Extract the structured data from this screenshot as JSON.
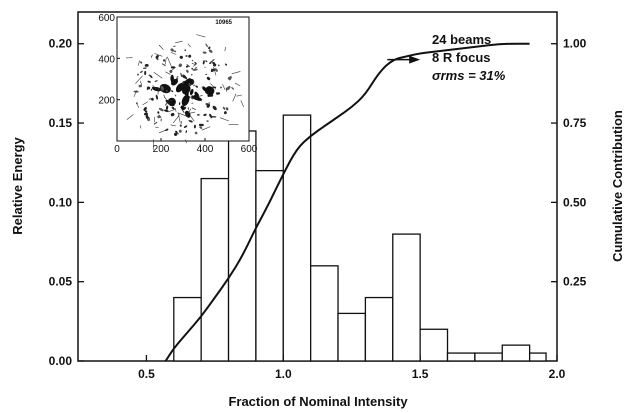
{
  "chart_data": [
    {
      "type": "bar",
      "xlabel": "Fraction of Nominal Intensity",
      "ylabel": "Relative Energy",
      "y2label": "Cumulative Contribution",
      "xlim": [
        0.25,
        2.0
      ],
      "ylim": [
        0.0,
        0.22
      ],
      "y2lim": [
        0.0,
        1.1
      ],
      "x_ticks": [
        "0.5",
        "1.0",
        "1.5",
        "2.0"
      ],
      "x_tick_values": [
        0.5,
        1.0,
        1.5,
        2.0
      ],
      "y_ticks": [
        "0.00",
        "0.05",
        "0.10",
        "0.15",
        "0.20"
      ],
      "y_tick_values": [
        0.0,
        0.05,
        0.1,
        0.15,
        0.2
      ],
      "y2_ticks": [
        "0.25",
        "0.50",
        "0.75",
        "1.00"
      ],
      "y2_tick_values": [
        0.25,
        0.5,
        0.75,
        1.0
      ],
      "bin_width": 0.1,
      "bin_centers": [
        0.65,
        0.75,
        0.85,
        0.95,
        1.05,
        1.15,
        1.25,
        1.35,
        1.45,
        1.55,
        1.65,
        1.75,
        1.85
      ],
      "values": [
        0.04,
        0.115,
        0.145,
        0.12,
        0.155,
        0.06,
        0.03,
        0.04,
        0.08,
        0.02,
        0.005,
        0.005,
        0.01
      ],
      "tail_bin": {
        "center": 1.93,
        "width": 0.06,
        "value": 0.005
      },
      "cumulative_curve": {
        "x": [
          0.57,
          0.6,
          0.65,
          0.7,
          0.75,
          0.8,
          0.85,
          0.9,
          0.95,
          1.0,
          1.05,
          1.1,
          1.15,
          1.2,
          1.25,
          1.3,
          1.35,
          1.4,
          1.45,
          1.5,
          1.6,
          1.7,
          1.8,
          1.9
        ],
        "y": [
          0.0,
          0.04,
          0.09,
          0.14,
          0.2,
          0.26,
          0.33,
          0.42,
          0.5,
          0.59,
          0.67,
          0.71,
          0.74,
          0.77,
          0.8,
          0.84,
          0.91,
          0.95,
          0.96,
          0.97,
          0.98,
          0.99,
          1.0,
          1.0
        ]
      },
      "arrow": {
        "x_from": 1.38,
        "x_to": 1.5,
        "y2": 0.95
      },
      "annotations": [
        "24 beams",
        "8 R focus",
        "σrms = 31%"
      ]
    },
    {
      "type": "scatter",
      "xlim": [
        0,
        600
      ],
      "ylim": [
        0,
        600
      ],
      "x_ticks": [
        "0",
        "200",
        "400",
        "600"
      ],
      "x_tick_values": [
        0,
        200,
        400,
        600
      ],
      "y_ticks": [
        "200",
        "400",
        "600"
      ],
      "y_tick_values": [
        200,
        400,
        600
      ],
      "label": "10965"
    }
  ]
}
